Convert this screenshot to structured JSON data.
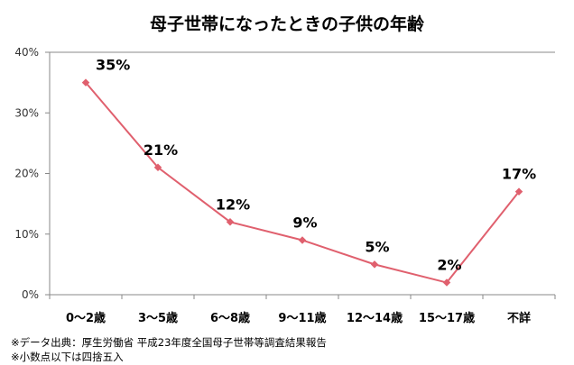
{
  "chart_data": {
    "type": "line",
    "title": "母子世帯になったときの子供の年齢",
    "categories": [
      "0〜2歳",
      "3〜5歳",
      "6〜8歳",
      "9〜11歳",
      "12〜14歳",
      "15〜17歳",
      "不詳"
    ],
    "values": [
      35,
      21,
      12,
      9,
      5,
      2,
      17
    ],
    "data_labels": [
      "35%",
      "21%",
      "12%",
      "9%",
      "5%",
      "2%",
      "17%"
    ],
    "y_ticks": [
      "0%",
      "10%",
      "20%",
      "30%",
      "40%"
    ],
    "ylim": [
      0,
      40
    ],
    "grid": false,
    "line_color": "#e0606e"
  },
  "notes": [
    "※データ出典：厚生労働省 平成23年度全国母子世帯等調査結果報告",
    "※小数点以下は四捨五入"
  ]
}
